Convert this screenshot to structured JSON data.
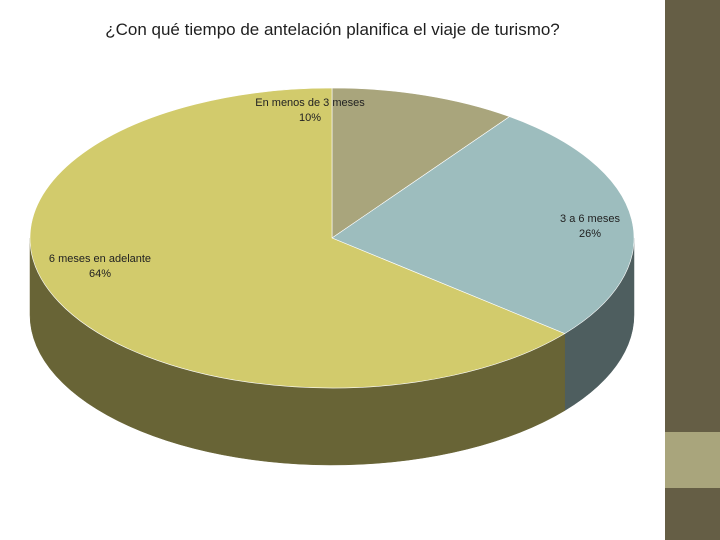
{
  "title": "¿Con qué tiempo de antelación planifica el viaje de turismo?",
  "colors": {
    "side_top": "#655e45",
    "side_mid": "#a9a57c",
    "side_bot": "#655e45"
  },
  "chart_data": {
    "type": "pie",
    "style": "3d",
    "legend": "none",
    "slices": [
      {
        "label": "En menos de 3 meses",
        "value_label": "10%",
        "value": 10,
        "color": "#a9a57c",
        "side_color": "#66634a"
      },
      {
        "label": "3 a 6 meses",
        "value_label": "26%",
        "value": 26,
        "color": "#9dbdbe",
        "side_color": "#4e5e5f"
      },
      {
        "label": "6 meses en adelante",
        "value_label": "64%",
        "value": 64,
        "color": "#d2cb6c",
        "side_color": "#686436"
      }
    ]
  }
}
